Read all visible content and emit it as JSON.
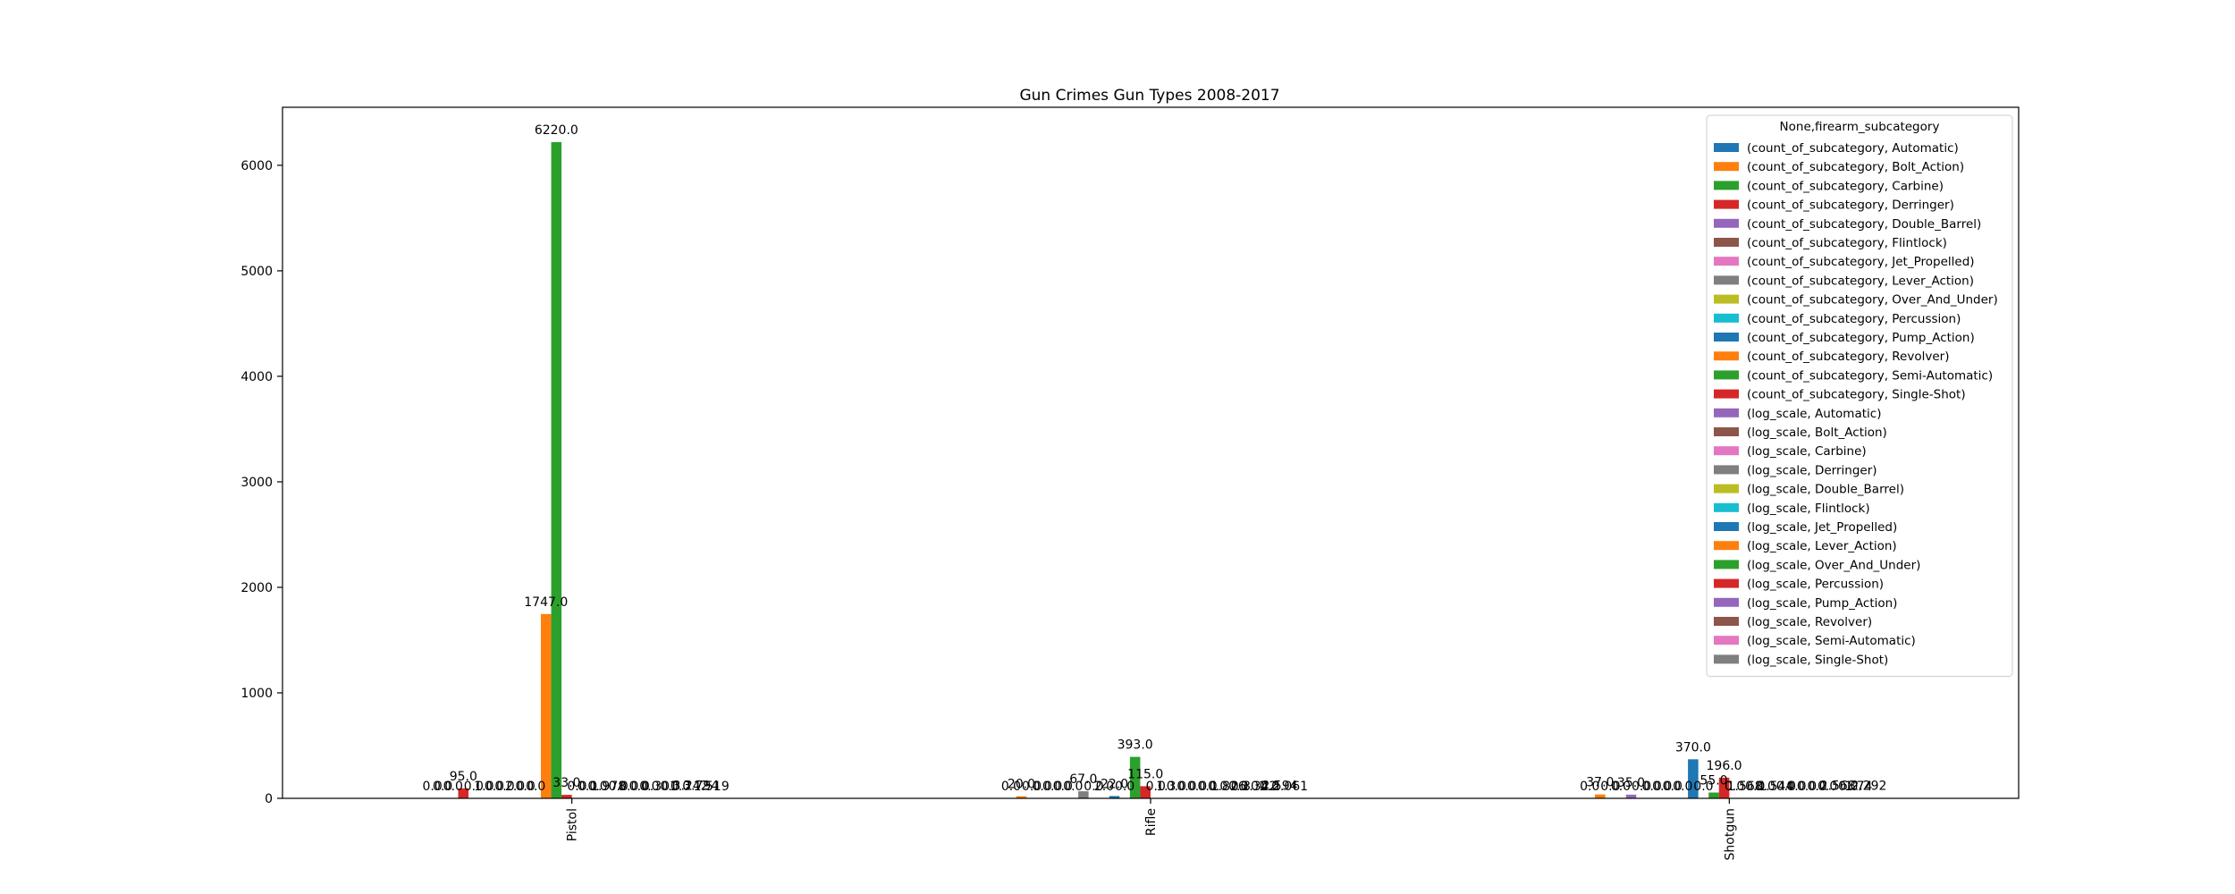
{
  "chart_data": {
    "type": "bar",
    "title": "Gun Crimes Gun Types 2008-2017",
    "xlabel": "",
    "ylabel": "",
    "ylim": [
      0,
      6550
    ],
    "yticks": [
      0,
      1000,
      2000,
      3000,
      4000,
      5000,
      6000
    ],
    "categories": [
      "Pistol",
      "Rifle",
      "Shotgun"
    ],
    "legend": {
      "title": "None,firearm_subcategory",
      "position": "top-right"
    },
    "series": [
      {
        "name": "(count_of_subcategory, Automatic)",
        "color": "#1f77b4",
        "values": [
          0.0,
          0.0,
          0.0
        ],
        "labels": [
          "0.0",
          "0.0",
          "0.0"
        ]
      },
      {
        "name": "(count_of_subcategory, Bolt_Action)",
        "color": "#ff7f0e",
        "values": [
          0.0,
          20.0,
          37.0
        ],
        "labels": [
          "0.0",
          "20.0",
          "37.0"
        ]
      },
      {
        "name": "(count_of_subcategory, Carbine)",
        "color": "#2ca02c",
        "values": [
          0.0,
          0.0,
          0.0
        ],
        "labels": [
          "0.0",
          "0.0",
          "0.0"
        ]
      },
      {
        "name": "(count_of_subcategory, Derringer)",
        "color": "#d62728",
        "values": [
          95.0,
          0.0,
          0.0
        ],
        "labels": [
          "95.0",
          "0.0",
          "0.0"
        ]
      },
      {
        "name": "(count_of_subcategory, Double_Barrel)",
        "color": "#9467bd",
        "values": [
          0.0,
          0.0,
          35.0
        ],
        "labels": [
          "0.0",
          "0.0",
          "35.0"
        ]
      },
      {
        "name": "(count_of_subcategory, Flintlock)",
        "color": "#8c564b",
        "values": [
          1.0,
          0.0,
          0.0
        ],
        "labels": [
          "1.0",
          "0.0",
          "0.0"
        ]
      },
      {
        "name": "(count_of_subcategory, Jet_Propelled)",
        "color": "#e377c2",
        "values": [
          0.0,
          0.0,
          0.0
        ],
        "labels": [
          "0.0",
          "0.0",
          "0.0"
        ]
      },
      {
        "name": "(count_of_subcategory, Lever_Action)",
        "color": "#7f7f7f",
        "values": [
          0.0,
          67.0,
          0.0
        ],
        "labels": [
          "0.0",
          "67.0",
          "0.0"
        ]
      },
      {
        "name": "(count_of_subcategory, Over_And_Under)",
        "color": "#bcbd22",
        "values": [
          2.0,
          0.0,
          0.0
        ],
        "labels": [
          "2.0",
          "0.0",
          "0.0"
        ]
      },
      {
        "name": "(count_of_subcategory, Percussion)",
        "color": "#17becf",
        "values": [
          0.0,
          2.0,
          0.0
        ],
        "labels": [
          "0.0",
          "2.0",
          "0.0"
        ]
      },
      {
        "name": "(count_of_subcategory, Pump_Action)",
        "color": "#1f77b4",
        "values": [
          0.0,
          22.0,
          370.0
        ],
        "labels": [
          "0.0",
          "22.0",
          "370.0"
        ]
      },
      {
        "name": "(count_of_subcategory, Revolver)",
        "color": "#ff7f0e",
        "values": [
          1747.0,
          0.0,
          0.0
        ],
        "labels": [
          "1747.0",
          "0.0",
          "0.0"
        ]
      },
      {
        "name": "(count_of_subcategory, Semi-Automatic)",
        "color": "#2ca02c",
        "values": [
          6220.0,
          393.0,
          55.0
        ],
        "labels": [
          "6220.0",
          "393.0",
          "55.0"
        ]
      },
      {
        "name": "(count_of_subcategory, Single-Shot)",
        "color": "#d62728",
        "values": [
          33.0,
          115.0,
          196.0
        ],
        "labels": [
          "33.0",
          "115.0",
          "196.0"
        ]
      },
      {
        "name": "(log_scale, Automatic)",
        "color": "#9467bd",
        "values": [
          0.0,
          0.0,
          0.0
        ],
        "labels": [
          "0.0",
          "0.0",
          "0.0"
        ]
      },
      {
        "name": "(log_scale, Bolt_Action)",
        "color": "#8c564b",
        "values": [
          0.0,
          1.3,
          1.568
        ],
        "labels": [
          "0.0",
          "1.3",
          "1.568"
        ]
      },
      {
        "name": "(log_scale, Carbine)",
        "color": "#e377c2",
        "values": [
          0.0,
          0.0,
          0.0
        ],
        "labels": [
          "0.0",
          "0.0",
          "0.0"
        ]
      },
      {
        "name": "(log_scale, Derringer)",
        "color": "#7f7f7f",
        "values": [
          1.978,
          0.0,
          0.0
        ],
        "labels": [
          "1.978",
          "0.0",
          "0.0"
        ]
      },
      {
        "name": "(log_scale, Double_Barrel)",
        "color": "#bcbd22",
        "values": [
          0.0,
          0.0,
          1.544
        ],
        "labels": [
          "0.0",
          "0.0",
          "1.544"
        ]
      },
      {
        "name": "(log_scale, Flintlock)",
        "color": "#17becf",
        "values": [
          0.0,
          0.0,
          0.0
        ],
        "labels": [
          "0.0",
          "0.0",
          "0.0"
        ]
      },
      {
        "name": "(log_scale, Jet_Propelled)",
        "color": "#1f77b4",
        "values": [
          0.0,
          0.0,
          0.0
        ],
        "labels": [
          "0.0",
          "0.0",
          "0.0"
        ]
      },
      {
        "name": "(log_scale, Lever_Action)",
        "color": "#ff7f0e",
        "values": [
          0.0,
          1.826,
          0.0
        ],
        "labels": [
          "0.0",
          "1.826",
          "0.0"
        ]
      },
      {
        "name": "(log_scale, Over_And_Under)",
        "color": "#2ca02c",
        "values": [
          0.301,
          0.0,
          0.0
        ],
        "labels": [
          "0.301",
          "0.0",
          "0.0"
        ]
      },
      {
        "name": "(log_scale, Percussion)",
        "color": "#d62728",
        "values": [
          0.0,
          0.301,
          0.0
        ],
        "labels": [
          "0.0",
          "0.301",
          "0.0"
        ]
      },
      {
        "name": "(log_scale, Pump_Action)",
        "color": "#9467bd",
        "values": [
          0.0,
          1.342,
          2.568
        ],
        "labels": [
          "0.0",
          "1.342",
          "2.568"
        ]
      },
      {
        "name": "(log_scale, Revolver)",
        "color": "#8c564b",
        "values": [
          3.242,
          0.0,
          0.0
        ],
        "labels": [
          "3.242",
          "0.0",
          "0.0"
        ]
      },
      {
        "name": "(log_scale, Semi-Automatic)",
        "color": "#e377c2",
        "values": [
          3.794,
          2.594,
          1.74
        ],
        "labels": [
          "3.794",
          "2.594",
          "1.74"
        ]
      },
      {
        "name": "(log_scale, Single-Shot)",
        "color": "#7f7f7f",
        "values": [
          1.519,
          2.061,
          2.292
        ],
        "labels": [
          "1.519",
          "2.061",
          "2.292"
        ]
      }
    ]
  }
}
